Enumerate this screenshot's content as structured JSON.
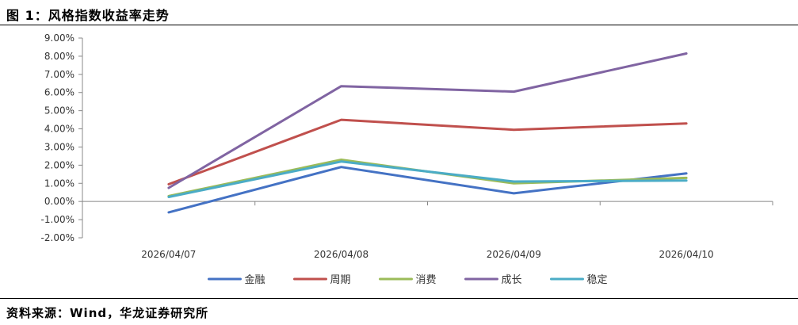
{
  "figure": {
    "title": "图 1：风格指数收益率走势",
    "source": "资料来源：Wind，华龙证券研究所"
  },
  "chart_data": {
    "type": "line",
    "categories": [
      "2026/04/07",
      "2026/04/08",
      "2026/04/09",
      "2026/04/10"
    ],
    "ylim": [
      -2.0,
      9.0
    ],
    "yticks": [
      "9.00%",
      "8.00%",
      "7.00%",
      "6.00%",
      "5.00%",
      "4.00%",
      "3.00%",
      "2.00%",
      "1.00%",
      "0.00%",
      "-1.00%",
      "-2.00%"
    ],
    "ytick_values": [
      9,
      8,
      7,
      6,
      5,
      4,
      3,
      2,
      1,
      0,
      -1,
      -2
    ],
    "grid": false,
    "legend_position": "bottom",
    "series": [
      {
        "name": "金融",
        "color": "#4472C4",
        "values": [
          -0.6,
          1.9,
          0.45,
          1.55
        ]
      },
      {
        "name": "周期",
        "color": "#C0504D",
        "values": [
          0.95,
          4.5,
          3.95,
          4.3
        ]
      },
      {
        "name": "消费",
        "color": "#9BBB59",
        "values": [
          0.3,
          2.3,
          1.0,
          1.3
        ]
      },
      {
        "name": "成长",
        "color": "#8064A2",
        "values": [
          0.75,
          6.35,
          6.05,
          8.15
        ]
      },
      {
        "name": "稳定",
        "color": "#4BACC6",
        "values": [
          0.25,
          2.2,
          1.1,
          1.15
        ]
      }
    ]
  }
}
